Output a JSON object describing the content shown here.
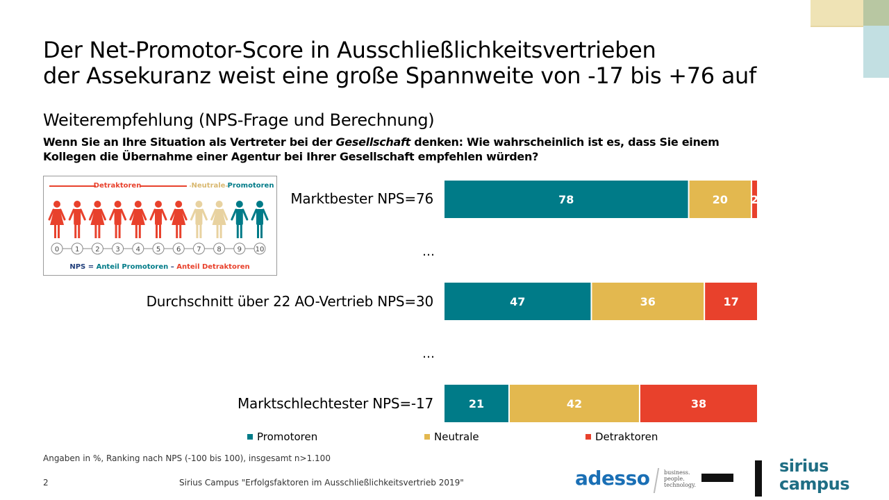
{
  "title": {
    "line1": "Der Net-Promotor-Score in Ausschließlichkeitsvertrieben",
    "line2": "der Assekuranz weist eine große Spannweite von -17 bis +76 auf"
  },
  "subtitle": "Weiterempfehlung (NPS-Frage und Berechnung)",
  "question": {
    "line1_before": "Wenn Sie an Ihre Situation als Vertreter bei der ",
    "line1_italic": "Gesellschaft",
    "line1_after": " denken: Wie wahrscheinlich ist es, dass Sie einem",
    "line2": "Kollegen die Übernahme einer Agentur bei Ihrer Gesellschaft empfehlen würden?"
  },
  "nps_legend": {
    "detraktoren": "Detraktoren",
    "neutrale": "Neutrale",
    "promotoren": "Promotoren",
    "scale": [
      "0",
      "1",
      "2",
      "3",
      "4",
      "5",
      "6",
      "7",
      "8",
      "9",
      "10"
    ],
    "formula_prefix": "NPS = ",
    "formula_promotoren": "Anteil Promotoren",
    "formula_minus": " – ",
    "formula_detraktoren": "Anteil Detraktoren"
  },
  "ellipsis": "…",
  "colors": {
    "promotoren": "#007b88",
    "neutrale": "#e3b84f",
    "detraktoren": "#e8412c",
    "neutrale_legend": "#e8d2a0"
  },
  "chart_data": {
    "type": "bar",
    "orientation": "horizontal",
    "stacked": true,
    "categories": [
      "Marktbester NPS=76",
      "Durchschnitt über 22 AO-Vertrieb NPS=30",
      "Marktschlechtester NPS=-17"
    ],
    "series": [
      {
        "name": "Promotoren",
        "values": [
          78,
          47,
          21
        ]
      },
      {
        "name": "Neutrale",
        "values": [
          20,
          36,
          42
        ]
      },
      {
        "name": "Detraktoren",
        "values": [
          2,
          17,
          38
        ]
      }
    ],
    "legend_position": "bottom",
    "unit": "%"
  },
  "footnote": "Angaben in %, Ranking nach NPS (-100 bis 100), insgesamt n>1.100",
  "page_number": "2",
  "source": "Sirius Campus \"Erfolgsfaktoren im Ausschließlichkeitsvertrieb 2019\"",
  "logos": {
    "adesso": "adesso",
    "adesso_tagline": [
      "business.",
      "people.",
      "technology."
    ],
    "sirius_line1": "sirius",
    "sirius_line2": "campus"
  }
}
